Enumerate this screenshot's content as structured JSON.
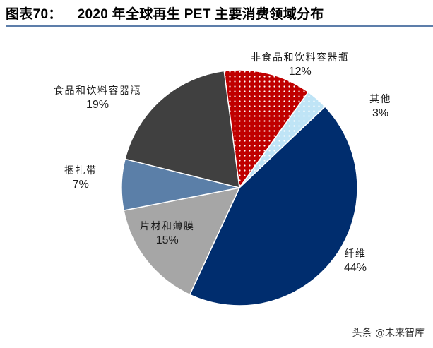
{
  "header": {
    "figure_no": "图表70：",
    "title": "2020 年全球再生 PET 主要消费领域分布"
  },
  "chart_data": {
    "type": "pie",
    "title": "2020 年全球再生 PET 主要消费领域分布",
    "unit": "%",
    "start_angle_deg": -7.5,
    "direction": "clockwise",
    "slices": [
      {
        "name": "非食品和饮料容器瓶",
        "value": 12,
        "label": "12%",
        "color": "#c00000",
        "pattern": "dots"
      },
      {
        "name": "其他",
        "value": 3,
        "label": "3%",
        "color": "#bfe4f6",
        "pattern": "dots"
      },
      {
        "name": "纤维",
        "value": 44,
        "label": "44%",
        "color": "#002d6e",
        "pattern": "solid"
      },
      {
        "name": "片材和薄膜",
        "value": 15,
        "label": "15%",
        "color": "#a6a6a6",
        "pattern": "solid"
      },
      {
        "name": "捆扎带",
        "value": 7,
        "label": "7%",
        "color": "#5b7fa8",
        "pattern": "solid"
      },
      {
        "name": "食品和饮料容器瓶",
        "value": 19,
        "label": "19%",
        "color": "#404040",
        "pattern": "solid"
      }
    ]
  },
  "watermark": "头条 @未来智库"
}
